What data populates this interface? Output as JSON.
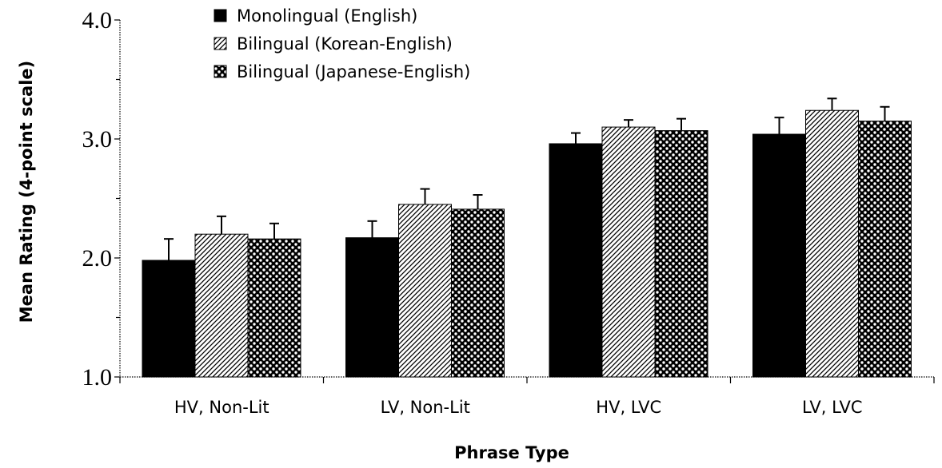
{
  "chart_data": {
    "type": "bar",
    "xlabel": "Phrase Type",
    "ylabel": "Mean Rating (4-point scale)",
    "ylim": [
      1.0,
      4.0
    ],
    "yticks": [
      "1.0",
      "2.0",
      "3.0",
      "4.0"
    ],
    "categories": [
      "HV, Non-Lit",
      "LV, Non-Lit",
      "HV, LVC",
      "LV, LVC"
    ],
    "series": [
      {
        "name": "Monolingual (English)",
        "values": [
          1.98,
          2.17,
          2.96,
          3.04
        ],
        "errors": [
          0.18,
          0.14,
          0.09,
          0.14
        ],
        "pattern": "solid"
      },
      {
        "name": "Bilingual (Korean-English)",
        "values": [
          2.2,
          2.45,
          3.1,
          3.24
        ],
        "errors": [
          0.15,
          0.13,
          0.06,
          0.1
        ],
        "pattern": "diagonal-hatch"
      },
      {
        "name": "Bilingual (Japanese-English)",
        "values": [
          2.16,
          2.41,
          3.07,
          3.15
        ],
        "errors": [
          0.13,
          0.12,
          0.1,
          0.12
        ],
        "pattern": "checker"
      }
    ],
    "legend_position": "top-left",
    "grid": false
  }
}
